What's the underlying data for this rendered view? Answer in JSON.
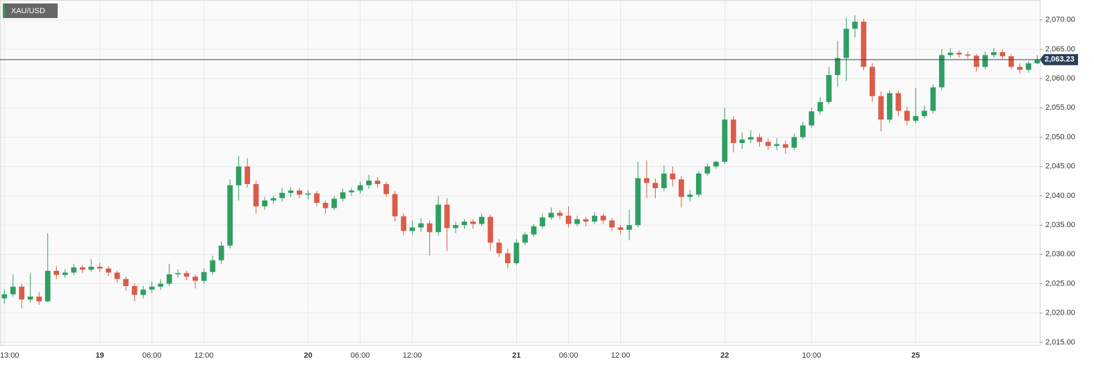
{
  "chart_data": {
    "type": "candlestick",
    "title": "XAU/USD",
    "up_color": "#2f9e62",
    "down_color": "#db5c48",
    "grid": true,
    "ylim": [
      2014.4,
      2073.4
    ],
    "yticks": [
      {
        "value": 2015,
        "label": "2,015.00"
      },
      {
        "value": 2020,
        "label": "2,020.00"
      },
      {
        "value": 2025,
        "label": "2,025.00"
      },
      {
        "value": 2030,
        "label": "2,030.00"
      },
      {
        "value": 2035,
        "label": "2,035.00"
      },
      {
        "value": 2040,
        "label": "2,040.00"
      },
      {
        "value": 2045,
        "label": "2,045.00"
      },
      {
        "value": 2050,
        "label": "2,050.00"
      },
      {
        "value": 2055,
        "label": "2,055.00"
      },
      {
        "value": 2060,
        "label": "2,060.00"
      },
      {
        "value": 2065,
        "label": "2,065.00"
      },
      {
        "value": 2070,
        "label": "2,070.00"
      }
    ],
    "xlim": [
      -0.5,
      119.3
    ],
    "xticks": [
      {
        "value": 0,
        "label": "13:00"
      },
      {
        "value": 11,
        "label": "19"
      },
      {
        "value": 17,
        "label": "06:00"
      },
      {
        "value": 23,
        "label": "12:00"
      },
      {
        "value": 35,
        "label": "20"
      },
      {
        "value": 41,
        "label": "06:00"
      },
      {
        "value": 47,
        "label": "12:00"
      },
      {
        "value": 59,
        "label": "21"
      },
      {
        "value": 65,
        "label": "06:00"
      },
      {
        "value": 71,
        "label": "12:00"
      },
      {
        "value": 83,
        "label": "22"
      },
      {
        "value": 93,
        "label": "10:00"
      },
      {
        "value": 105,
        "label": "25"
      }
    ],
    "last_price": {
      "value": 2063.23,
      "label": "2,063.23",
      "color": "#2b3f5c"
    },
    "open": [
      2022.5,
      2023.2,
      2024.5,
      2022.3,
      2022.8,
      2022.0,
      2027.2,
      2026.5,
      2026.9,
      2027.8,
      2027.4,
      2027.9,
      2027.6,
      2026.9,
      2025.8,
      2024.6,
      2023.1,
      2024.0,
      2024.5,
      2025.0,
      2026.6,
      2026.8,
      2026.2,
      2025.5,
      2027.0,
      2029.0,
      2031.5,
      2041.8,
      2045.0,
      2042.0,
      2038.2,
      2039.2,
      2039.6,
      2040.5,
      2040.9,
      2040.2,
      2040.4,
      2038.8,
      2037.9,
      2039.5,
      2040.6,
      2040.9,
      2041.8,
      2042.6,
      2042.0,
      2040.3,
      2036.5,
      2034.0,
      2034.6,
      2035.3,
      2033.8,
      2038.5,
      2034.5,
      2035.0,
      2035.6,
      2035.2,
      2036.4,
      2032.0,
      2030.2,
      2028.5,
      2032.0,
      2033.4,
      2034.8,
      2036.3,
      2037.1,
      2036.6,
      2035.2,
      2036.0,
      2035.6,
      2036.6,
      2035.8,
      2034.6,
      2034.2,
      2035.0,
      2043.0,
      2042.2,
      2041.3,
      2043.8,
      2042.8,
      2039.8,
      2040.2,
      2043.8,
      2045.0,
      2045.8,
      2053.0,
      2049.0,
      2049.6,
      2050.0,
      2049.2,
      2048.5,
      2048.8,
      2048.2,
      2050.0,
      2052.0,
      2054.4,
      2056.0,
      2060.6,
      2063.5,
      2068.5,
      2069.7,
      2062.0,
      2057.0,
      2053.0,
      2057.5,
      2054.5,
      2052.8,
      2053.6,
      2054.5,
      2058.5,
      2064.0,
      2064.4,
      2064.1,
      2063.9,
      2062.0,
      2064.0,
      2064.5,
      2063.8,
      2062.0,
      2061.5,
      2062.6
    ],
    "high": [
      2024.0,
      2026.6,
      2025.0,
      2026.8,
      2023.6,
      2033.6,
      2028.0,
      2027.5,
      2028.4,
      2028.2,
      2029.2,
      2028.6,
      2028.0,
      2027.3,
      2026.2,
      2025.0,
      2024.6,
      2025.4,
      2025.8,
      2028.4,
      2027.5,
      2027.2,
      2026.6,
      2027.6,
      2029.8,
      2032.2,
      2042.8,
      2046.8,
      2046.4,
      2042.6,
      2039.8,
      2040.0,
      2041.4,
      2041.4,
      2041.3,
      2041.0,
      2040.8,
      2039.2,
      2040.0,
      2041.2,
      2041.4,
      2042.4,
      2043.6,
      2043.2,
      2042.4,
      2040.8,
      2037.0,
      2035.8,
      2036.2,
      2035.8,
      2040.0,
      2039.6,
      2035.6,
      2036.0,
      2036.0,
      2037.0,
      2036.8,
      2032.6,
      2031.0,
      2032.6,
      2033.8,
      2035.2,
      2037.0,
      2038.0,
      2037.6,
      2038.2,
      2036.6,
      2036.4,
      2037.2,
      2037.0,
      2036.2,
      2035.0,
      2037.6,
      2045.8,
      2046.0,
      2043.0,
      2045.2,
      2045.0,
      2043.4,
      2041.0,
      2044.2,
      2045.4,
      2046.0,
      2055.0,
      2053.6,
      2050.8,
      2051.2,
      2050.6,
      2049.8,
      2049.8,
      2049.4,
      2050.6,
      2052.6,
      2055.0,
      2056.8,
      2062.0,
      2066.4,
      2070.4,
      2070.8,
      2070.2,
      2062.6,
      2057.8,
      2058.0,
      2058.0,
      2055.2,
      2058.4,
      2055.4,
      2059.0,
      2065.0,
      2065.2,
      2064.8,
      2064.6,
      2064.2,
      2064.6,
      2065.2,
      2065.0,
      2064.2,
      2062.6,
      2063.0,
      2064.0
    ],
    "low": [
      2021.6,
      2022.8,
      2020.8,
      2021.8,
      2021.4,
      2021.8,
      2025.8,
      2026.0,
      2026.5,
      2026.8,
      2027.0,
      2027.0,
      2026.3,
      2025.2,
      2023.8,
      2022.0,
      2022.5,
      2023.4,
      2023.9,
      2024.6,
      2026.0,
      2025.6,
      2024.2,
      2025.0,
      2026.5,
      2028.4,
      2031.0,
      2039.2,
      2041.4,
      2037.0,
      2037.6,
      2038.6,
      2039.0,
      2039.8,
      2039.6,
      2039.4,
      2038.2,
      2036.9,
      2037.5,
      2039.0,
      2040.0,
      2040.4,
      2041.2,
      2041.4,
      2039.8,
      2035.6,
      2033.2,
      2033.4,
      2033.8,
      2029.8,
      2033.2,
      2030.6,
      2033.6,
      2034.4,
      2034.4,
      2034.8,
      2030.6,
      2029.6,
      2027.6,
      2028.2,
      2031.6,
      2033.0,
      2034.4,
      2035.9,
      2036.0,
      2034.6,
      2034.8,
      2034.8,
      2035.2,
      2035.2,
      2034.0,
      2033.4,
      2032.4,
      2034.6,
      2039.6,
      2039.6,
      2040.8,
      2041.6,
      2038.0,
      2039.0,
      2039.8,
      2043.4,
      2044.6,
      2045.4,
      2047.4,
      2048.0,
      2049.0,
      2048.4,
      2047.8,
      2047.8,
      2047.2,
      2047.8,
      2049.6,
      2051.6,
      2053.8,
      2055.6,
      2058.6,
      2059.6,
      2067.0,
      2061.4,
      2056.0,
      2051.0,
      2052.4,
      2053.6,
      2052.0,
      2052.4,
      2053.2,
      2054.0,
      2058.0,
      2063.6,
      2063.6,
      2063.4,
      2061.2,
      2061.6,
      2063.6,
      2063.4,
      2061.6,
      2060.8,
      2061.0,
      2062.4
    ],
    "close": [
      2023.2,
      2024.5,
      2022.3,
      2022.8,
      2022.0,
      2027.2,
      2026.5,
      2026.9,
      2027.8,
      2027.4,
      2027.9,
      2027.6,
      2026.9,
      2025.8,
      2024.6,
      2023.1,
      2024.0,
      2024.5,
      2025.0,
      2026.6,
      2026.8,
      2026.2,
      2025.5,
      2027.0,
      2029.0,
      2031.5,
      2041.8,
      2045.0,
      2042.0,
      2038.2,
      2039.2,
      2039.6,
      2040.5,
      2040.9,
      2040.2,
      2040.4,
      2038.8,
      2037.9,
      2039.5,
      2040.6,
      2040.9,
      2041.8,
      2042.6,
      2042.0,
      2040.3,
      2036.5,
      2034.0,
      2034.6,
      2035.3,
      2033.8,
      2038.5,
      2034.5,
      2035.0,
      2035.6,
      2035.2,
      2036.4,
      2032.0,
      2030.2,
      2028.5,
      2032.0,
      2033.4,
      2034.8,
      2036.3,
      2037.1,
      2036.6,
      2035.2,
      2036.0,
      2035.6,
      2036.6,
      2035.8,
      2034.6,
      2034.2,
      2035.0,
      2043.0,
      2042.2,
      2041.3,
      2043.8,
      2042.8,
      2039.8,
      2040.2,
      2043.8,
      2045.0,
      2045.8,
      2053.0,
      2049.0,
      2049.6,
      2050.0,
      2049.2,
      2048.5,
      2048.8,
      2048.2,
      2050.0,
      2052.0,
      2054.4,
      2056.0,
      2060.6,
      2063.5,
      2068.5,
      2069.7,
      2062.0,
      2057.0,
      2053.0,
      2057.5,
      2054.5,
      2052.8,
      2053.6,
      2054.5,
      2058.5,
      2064.0,
      2064.4,
      2064.1,
      2063.9,
      2062.0,
      2064.0,
      2064.5,
      2063.8,
      2062.0,
      2061.5,
      2062.6,
      2063.2
    ]
  }
}
